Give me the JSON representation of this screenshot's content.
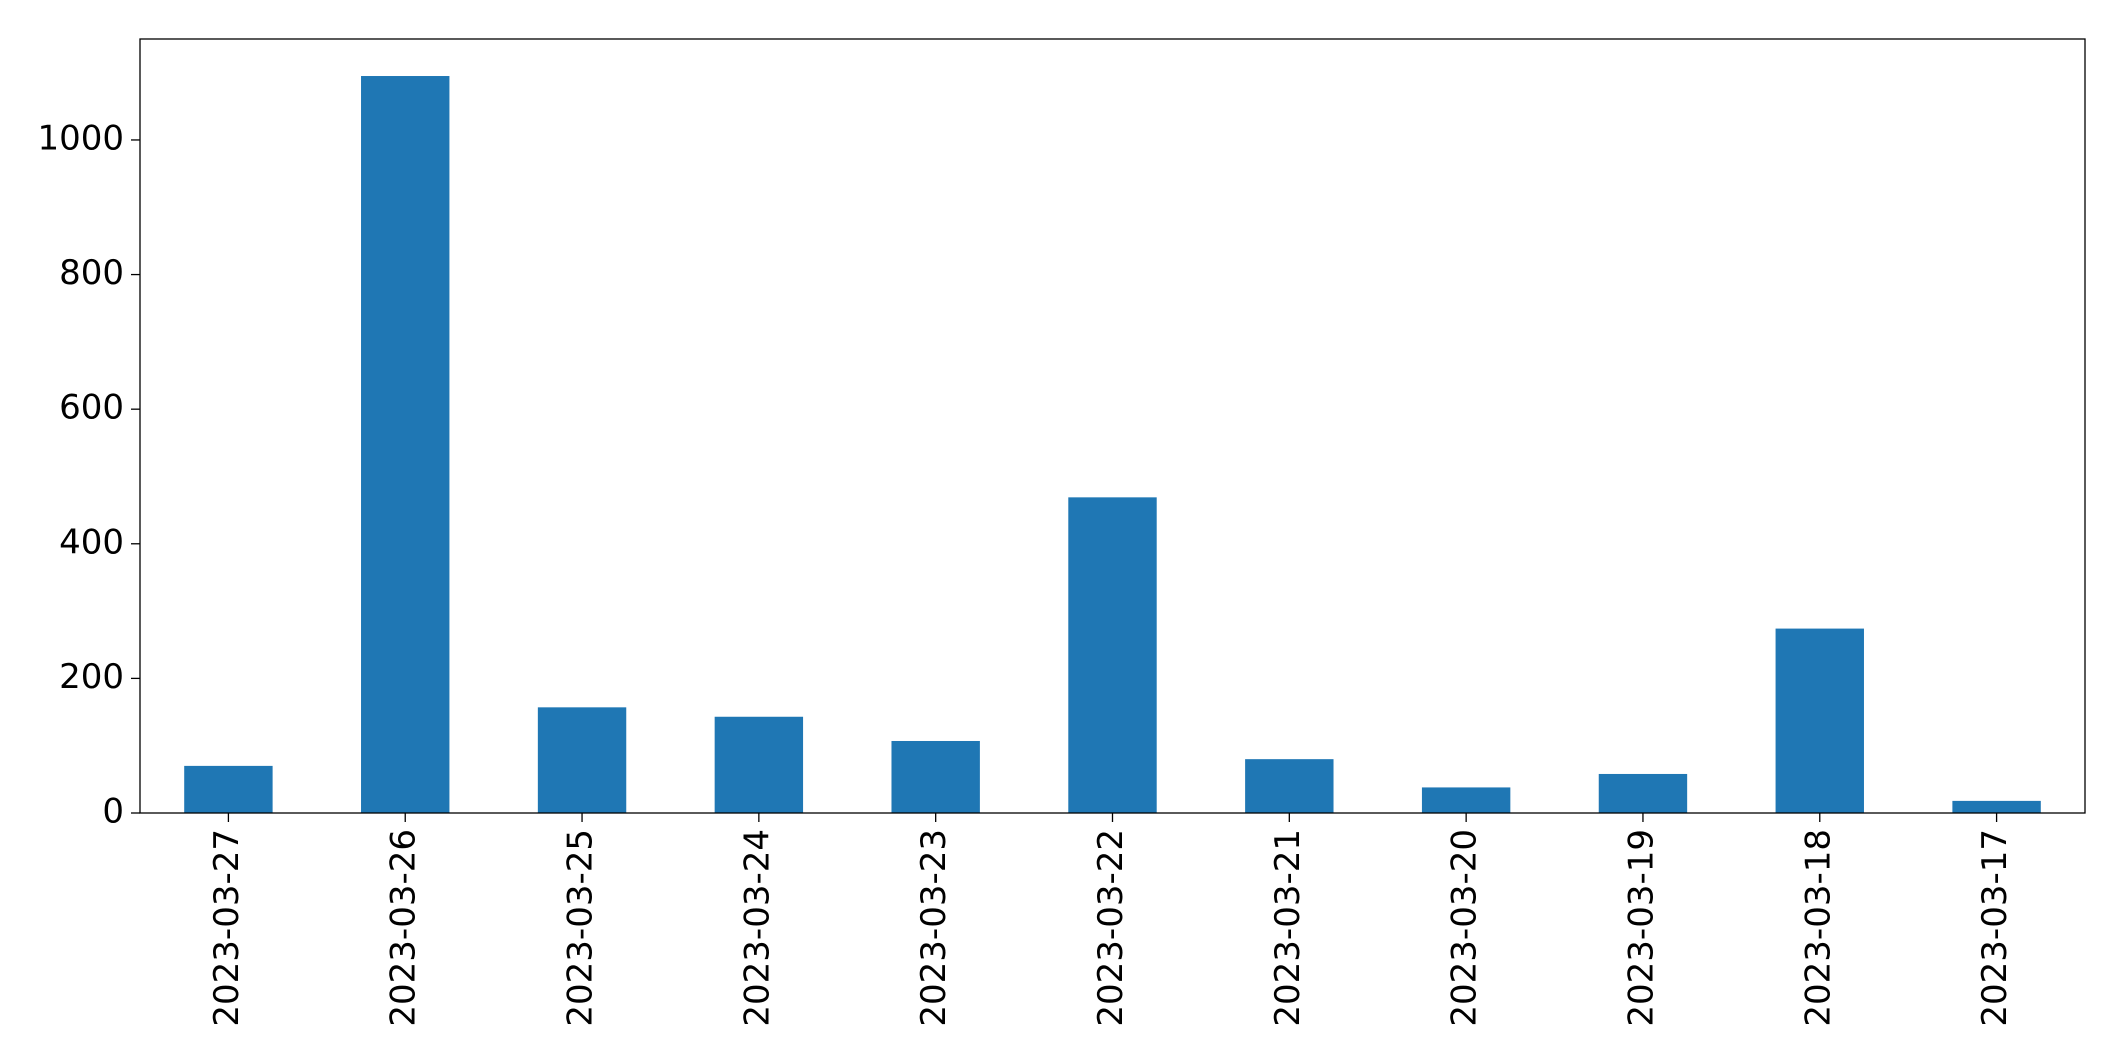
{
  "chart_data": {
    "type": "bar",
    "categories": [
      "2023-03-27",
      "2023-03-26",
      "2023-03-25",
      "2023-03-24",
      "2023-03-23",
      "2023-03-22",
      "2023-03-21",
      "2023-03-20",
      "2023-03-19",
      "2023-03-18",
      "2023-03-17"
    ],
    "values": [
      70,
      1095,
      157,
      143,
      107,
      469,
      80,
      38,
      58,
      274,
      18
    ],
    "color": "#1f77b4",
    "ylim": [
      0,
      1150
    ],
    "yticks": [
      0,
      200,
      400,
      600,
      800,
      1000
    ],
    "grid": false
  }
}
